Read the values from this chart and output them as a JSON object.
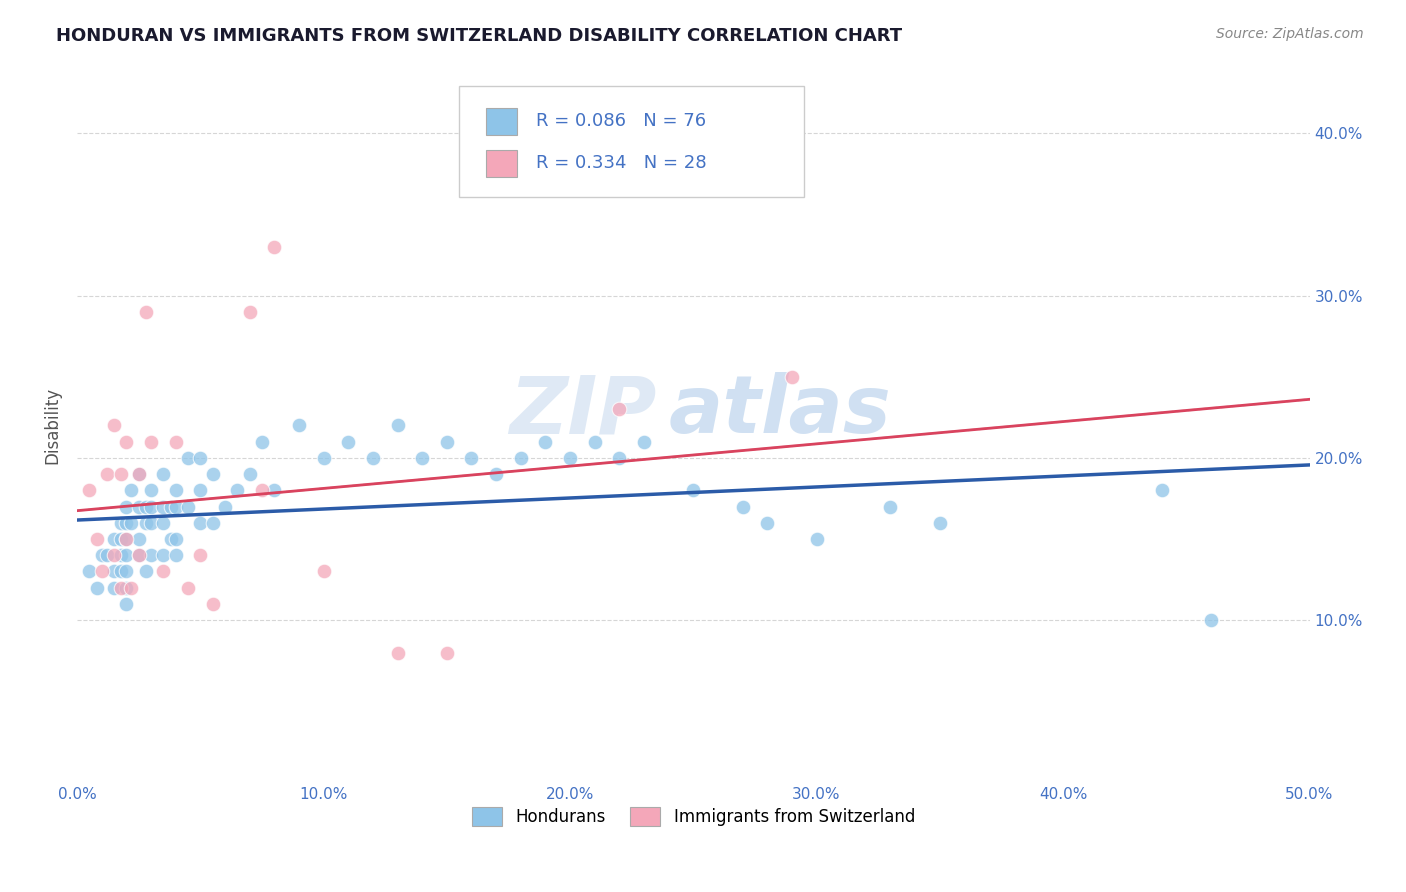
{
  "title": "HONDURAN VS IMMIGRANTS FROM SWITZERLAND DISABILITY CORRELATION CHART",
  "source_text": "Source: ZipAtlas.com",
  "ylabel": "Disability",
  "xlim": [
    0.0,
    0.5
  ],
  "ylim": [
    0.0,
    0.44
  ],
  "xticks": [
    0.0,
    0.1,
    0.2,
    0.3,
    0.4,
    0.5
  ],
  "yticks": [
    0.1,
    0.2,
    0.3,
    0.4
  ],
  "xtick_labels": [
    "0.0%",
    "10.0%",
    "20.0%",
    "30.0%",
    "40.0%",
    "50.0%"
  ],
  "ytick_labels": [
    "10.0%",
    "20.0%",
    "30.0%",
    "40.0%"
  ],
  "legend1_label": "Hondurans",
  "legend2_label": "Immigrants from Switzerland",
  "R1": "0.086",
  "N1": "76",
  "R2": "0.334",
  "N2": "28",
  "blue_color": "#8ec4e8",
  "pink_color": "#f4a7b9",
  "blue_line_color": "#2b5ba8",
  "pink_line_color": "#d9435e",
  "pink_dash_color": "#d9899e",
  "watermark_text": "ZIP",
  "watermark_text2": "atlas",
  "blue_scatter_x": [
    0.005,
    0.008,
    0.01,
    0.012,
    0.015,
    0.015,
    0.015,
    0.018,
    0.018,
    0.018,
    0.018,
    0.02,
    0.02,
    0.02,
    0.02,
    0.02,
    0.02,
    0.02,
    0.022,
    0.022,
    0.025,
    0.025,
    0.025,
    0.025,
    0.028,
    0.028,
    0.028,
    0.03,
    0.03,
    0.03,
    0.03,
    0.035,
    0.035,
    0.035,
    0.035,
    0.038,
    0.038,
    0.04,
    0.04,
    0.04,
    0.04,
    0.045,
    0.045,
    0.05,
    0.05,
    0.05,
    0.055,
    0.055,
    0.06,
    0.065,
    0.07,
    0.075,
    0.08,
    0.09,
    0.1,
    0.11,
    0.12,
    0.13,
    0.14,
    0.15,
    0.16,
    0.17,
    0.18,
    0.19,
    0.2,
    0.21,
    0.22,
    0.23,
    0.25,
    0.27,
    0.28,
    0.3,
    0.33,
    0.35,
    0.44,
    0.46
  ],
  "blue_scatter_y": [
    0.13,
    0.12,
    0.14,
    0.14,
    0.15,
    0.13,
    0.12,
    0.16,
    0.15,
    0.14,
    0.13,
    0.17,
    0.16,
    0.15,
    0.14,
    0.13,
    0.12,
    0.11,
    0.18,
    0.16,
    0.19,
    0.17,
    0.15,
    0.14,
    0.17,
    0.16,
    0.13,
    0.18,
    0.17,
    0.16,
    0.14,
    0.19,
    0.17,
    0.16,
    0.14,
    0.17,
    0.15,
    0.18,
    0.17,
    0.15,
    0.14,
    0.2,
    0.17,
    0.2,
    0.18,
    0.16,
    0.19,
    0.16,
    0.17,
    0.18,
    0.19,
    0.21,
    0.18,
    0.22,
    0.2,
    0.21,
    0.2,
    0.22,
    0.2,
    0.21,
    0.2,
    0.19,
    0.2,
    0.21,
    0.2,
    0.21,
    0.2,
    0.21,
    0.18,
    0.17,
    0.16,
    0.15,
    0.17,
    0.16,
    0.18,
    0.1
  ],
  "pink_scatter_x": [
    0.005,
    0.008,
    0.01,
    0.012,
    0.015,
    0.015,
    0.018,
    0.018,
    0.02,
    0.02,
    0.022,
    0.025,
    0.025,
    0.028,
    0.03,
    0.035,
    0.04,
    0.045,
    0.05,
    0.055,
    0.07,
    0.075,
    0.08,
    0.1,
    0.13,
    0.15,
    0.22,
    0.29
  ],
  "pink_scatter_y": [
    0.18,
    0.15,
    0.13,
    0.19,
    0.14,
    0.22,
    0.19,
    0.12,
    0.21,
    0.15,
    0.12,
    0.19,
    0.14,
    0.29,
    0.21,
    0.13,
    0.21,
    0.12,
    0.14,
    0.11,
    0.29,
    0.18,
    0.33,
    0.13,
    0.08,
    0.08,
    0.23,
    0.25
  ]
}
